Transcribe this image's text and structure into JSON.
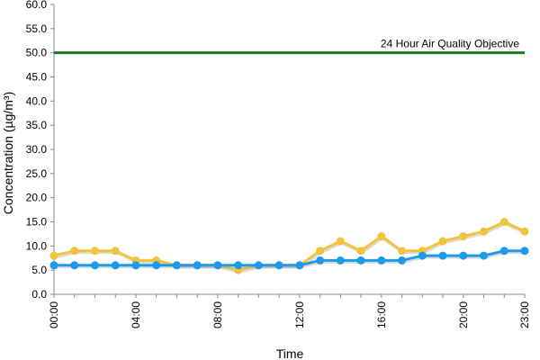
{
  "chart_data": {
    "type": "line",
    "title": "",
    "xlabel": "Time",
    "ylabel": "Concentration (µg/m³)",
    "ylim": [
      0,
      60
    ],
    "y_ticks": [
      "0.0",
      "5.0",
      "10.0",
      "15.0",
      "20.0",
      "25.0",
      "30.0",
      "35.0",
      "40.0",
      "45.0",
      "50.0",
      "55.0",
      "60.0"
    ],
    "x_tick_labels": [
      "00:00",
      "04:00",
      "08:00",
      "12:00",
      "16:00",
      "20:00",
      "23:00"
    ],
    "x_tick_hours": [
      0,
      4,
      8,
      12,
      16,
      20,
      23
    ],
    "x_hours": [
      0,
      1,
      2,
      3,
      4,
      5,
      6,
      7,
      8,
      9,
      10,
      11,
      12,
      13,
      14,
      15,
      16,
      17,
      18,
      19,
      20,
      21,
      22,
      23
    ],
    "series": [
      {
        "color": "#F0C43C",
        "values": [
          8,
          9,
          9,
          9,
          7,
          7,
          6,
          6,
          6,
          5,
          6,
          6,
          6,
          9,
          11,
          9,
          12,
          9,
          9,
          11,
          12,
          13,
          15,
          13
        ]
      },
      {
        "color": "#1E9BE8",
        "values": [
          6,
          6,
          6,
          6,
          6,
          6,
          6,
          6,
          6,
          6,
          6,
          6,
          6,
          7,
          7,
          7,
          7,
          7,
          8,
          8,
          8,
          8,
          9,
          9
        ]
      }
    ],
    "reference_line": {
      "value": 50,
      "label": "24 Hour Air Quality Objective",
      "color": "#1B7A1B"
    },
    "grid": false,
    "legend": "none"
  }
}
